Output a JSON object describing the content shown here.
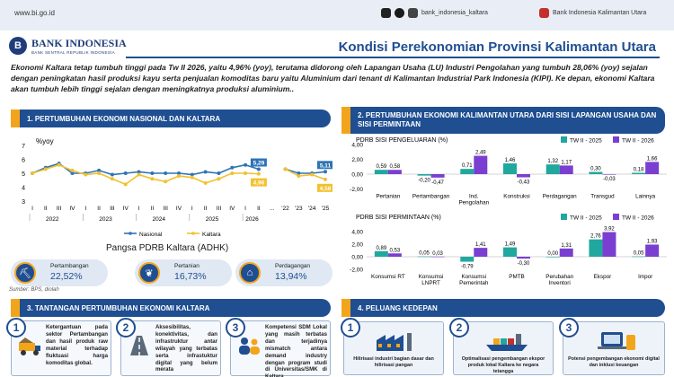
{
  "header": {
    "url": "www.bi.go.id",
    "social_handle": "bank_indonesia_kaltara",
    "channel": "Bank Indonesia Kalimantan Utara",
    "icons": [
      "tiktok-icon",
      "twitter-icon",
      "instagram-icon",
      "youtube-icon"
    ]
  },
  "logo": {
    "name": "BANK INDONESIA",
    "tagline": "BANK SENTRAL REPUBLIK INDONESIA"
  },
  "title": "Kondisi Perekonomian Provinsi Kalimantan Utara",
  "intro": "Ekonomi Kaltara tetap tumbuh tinggi pada Tw II 2026, yaitu 4,96% (yoy), terutama didorong oleh Lapangan Usaha (LU) Industri Pengolahan yang tumbuh 28,06% (yoy) sejalan dengan peningkatan hasil produksi kayu serta penjualan komoditas baru yaitu Aluminium dari tenant di Kalimantan Industrial Park Indonesia (KIPI). Ke depan, ekonomi Kaltara akan tumbuh lebih tinggi sejalan dengan meningkatnya produksi aluminium..",
  "sections": {
    "s1": "1. PERTUMBUHAN EKONOMI NASIONAL DAN KALTARA",
    "s2": "2. PERTUMBUHAN EKONOMI KALIMANTAN UTARA DARI SISI LAPANGAN USAHA DAN SISI PERMINTAAN",
    "s3": "3. TANTANGAN PERTUMBUHAN EKONOMI KALTARA",
    "s4": "4. PELUANG KEDEPAN"
  },
  "colors": {
    "navy": "#1f4e91",
    "orange": "#f2a51b",
    "nasional": "#2e74b5",
    "kaltara": "#f2c12e",
    "tw2025": "#20a89e",
    "tw2026": "#7a3fd1"
  },
  "chart_data": [
    {
      "type": "line",
      "ylabel": "%yoy",
      "ylim": [
        3,
        7
      ],
      "yticks": [
        "3",
        "4",
        "5",
        "6",
        "7"
      ],
      "x": [
        "I",
        "II",
        "III",
        "IV",
        "I",
        "II",
        "III",
        "IV",
        "I",
        "II",
        "III",
        "IV",
        "I",
        "II",
        "III",
        "IV",
        "I",
        "II",
        "...",
        "'22",
        "'23",
        "'24",
        "'25"
      ],
      "year_groups": [
        "2022",
        "2023",
        "2024",
        "2025",
        "2026"
      ],
      "series": [
        {
          "name": "Nasional",
          "values": [
            5.0,
            5.4,
            5.7,
            5.0,
            5.0,
            5.2,
            4.9,
            5.0,
            5.1,
            5.0,
            5.0,
            5.0,
            4.9,
            5.1,
            5.0,
            5.4,
            5.6,
            5.29,
            null,
            5.3,
            5.0,
            5.0,
            5.11
          ]
        },
        {
          "name": "Kaltara",
          "values": [
            5.0,
            5.3,
            5.6,
            5.2,
            4.9,
            5.0,
            4.6,
            4.2,
            4.9,
            4.6,
            4.4,
            4.8,
            4.7,
            4.3,
            4.6,
            5.0,
            5.0,
            4.96,
            null,
            5.3,
            4.8,
            4.9,
            4.56
          ]
        }
      ],
      "data_labels": [
        "5,29",
        "4,96",
        "5,11",
        "4,56"
      ]
    },
    {
      "type": "bar",
      "title": "PDRB SISI PENGELUARAN (%)",
      "ylim": [
        -2,
        4
      ],
      "yticks": [
        "-2,00",
        "0,00",
        "2,00",
        "4,00"
      ],
      "categories": [
        "Pertanian",
        "Pertambangan",
        "Ind. Pengolahan",
        "Konstruksi",
        "Perdagangan",
        "Transgud",
        "Lainnya"
      ],
      "series": [
        {
          "name": "TW II - 2025",
          "values": [
            0.59,
            -0.2,
            0.71,
            1.46,
            1.32,
            0.3,
            0.18
          ]
        },
        {
          "name": "TW II - 2026",
          "values": [
            0.58,
            -0.47,
            2.49,
            -0.43,
            1.17,
            -0.03,
            1.66
          ]
        }
      ],
      "value_labels": [
        [
          "0,59",
          "-0,20",
          "0,71",
          "1,46",
          "1,32",
          "0,30",
          "0,18"
        ],
        [
          "0,58",
          "-0,47",
          "2,49",
          "-0,43",
          "1,17",
          "-0,03",
          "1,66"
        ]
      ]
    },
    {
      "type": "bar",
      "title": "PDRB SISI PERMINTAAN (%)",
      "ylim": [
        -2,
        4
      ],
      "yticks": [
        "-2,00",
        "0,00",
        "2,00",
        "4,00"
      ],
      "categories": [
        "Konsumsi RT",
        "Konsumsi LNPRT",
        "Konsumsi Pemerintah",
        "PMTB",
        "Perubahan Inventori",
        "Ekspor",
        "Impor"
      ],
      "series": [
        {
          "name": "TW II - 2025",
          "values": [
            0.89,
            0.05,
            -0.79,
            1.49,
            0.0,
            2.76,
            0.05
          ]
        },
        {
          "name": "TW II - 2026",
          "values": [
            0.53,
            0.03,
            1.41,
            -0.3,
            1.31,
            3.92,
            1.93
          ]
        }
      ],
      "value_labels": [
        [
          "0,89",
          "0,05",
          "-0,79",
          "1,49",
          "0,00",
          "2,76",
          "0,05"
        ],
        [
          "0,53",
          "0,03",
          "1,41",
          "-0,30",
          "1,31",
          "3,92",
          "1,93"
        ]
      ]
    }
  ],
  "pangsa": {
    "title": "Pangsa PDRB Kaltara (ADHK)",
    "items": [
      {
        "label": "Pertambangan",
        "value": "22,52%"
      },
      {
        "label": "Pertanian",
        "value": "16,73%"
      },
      {
        "label": "Perdagangan",
        "value": "13,94%"
      }
    ]
  },
  "source": "Sumber: BPS, diolah",
  "tantangan": [
    {
      "num": "1",
      "text": "Ketergantuan pada sektor Pertambangan dan hasil produk raw material terhadap fluktuasi harga komoditas global."
    },
    {
      "num": "2",
      "text": "Aksesibilitas, konektivitas, dan infrastruktur antar wilayah yang terbatas serta infrastuktur digital yang belum merata"
    },
    {
      "num": "3",
      "text": "Kompetensi SDM Lokal yang masih terbatas dan terjadinya mismatch antara demand industry dengan program studi di Universitas/SMK di Kaltara"
    }
  ],
  "peluang": [
    {
      "num": "1",
      "text": "Hilirisasi industri bagian dasar dan hilirisasi pangan"
    },
    {
      "num": "2",
      "text": "Optimalisasi pengembangan ekspor produk lokal Kaltara ke negara tetangga"
    },
    {
      "num": "3",
      "text": "Potensi pengembangan ekonomi digital dan inklusi keuangan"
    }
  ]
}
